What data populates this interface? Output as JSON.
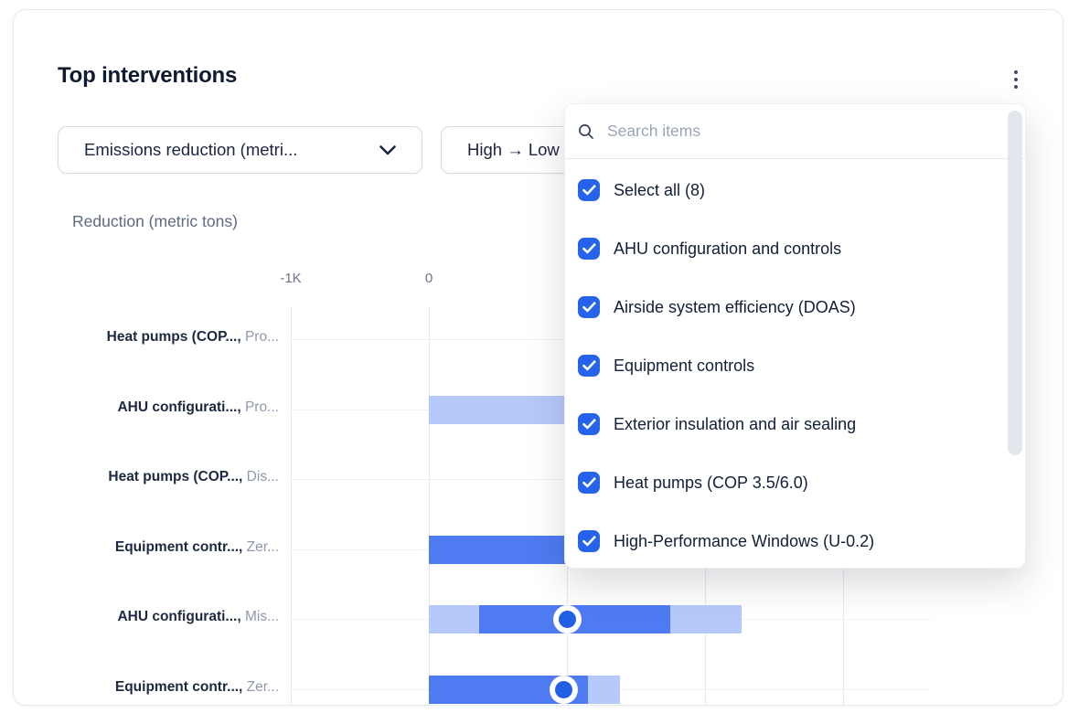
{
  "card": {
    "title": "Top interventions",
    "menu_icon": "kebab-vertical-icon"
  },
  "filters": {
    "metric_select": {
      "value": "Emissions reduction (metri...",
      "icon": "chevron-down-icon"
    },
    "sort_select": {
      "value": "High → Low"
    }
  },
  "dropdown_panel": {
    "search": {
      "placeholder": "Search items",
      "icon": "search-icon"
    },
    "items": [
      {
        "label": "Select all (8)",
        "checked": true
      },
      {
        "label": "AHU configuration and controls",
        "checked": true
      },
      {
        "label": "Airside system efficiency (DOAS)",
        "checked": true
      },
      {
        "label": "Equipment controls",
        "checked": true
      },
      {
        "label": "Exterior insulation and air sealing",
        "checked": true
      },
      {
        "label": "Heat pumps (COP 3.5/6.0)",
        "checked": true
      },
      {
        "label": "High-Performance Windows (U-0.2)",
        "checked": true
      }
    ]
  },
  "chart_data": {
    "type": "bar",
    "orientation": "horizontal",
    "title": "Reduction (metric tons)",
    "xlabel": "Reduction (metric tons)",
    "ylabel": "",
    "grid": true,
    "x_axis": {
      "unit": "metric tons",
      "visible_ticks": [
        {
          "label": "-1K",
          "value": -1000
        },
        {
          "label": "0",
          "value": 0
        }
      ],
      "gridline_values": [
        -1000,
        0,
        1000,
        2000,
        3000
      ]
    },
    "rows": [
      {
        "label_bold": "Heat pumps (COP...,",
        "label_muted": "Pro...",
        "segments": [],
        "marker": null
      },
      {
        "label_bold": "AHU configurati...,",
        "label_muted": "Pro...",
        "segments": [
          {
            "tone": "light",
            "from": 0,
            "to": 1000
          }
        ],
        "marker": null
      },
      {
        "label_bold": "Heat pumps (COP...,",
        "label_muted": "Dis...",
        "segments": [],
        "marker": null
      },
      {
        "label_bold": "Equipment contr...,",
        "label_muted": "Zer...",
        "segments": [
          {
            "tone": "dark",
            "from": 0,
            "to": 1000
          }
        ],
        "marker": null
      },
      {
        "label_bold": "AHU configurati...,",
        "label_muted": "Mis...",
        "segments": [
          {
            "tone": "light",
            "from": 0,
            "to": 365
          },
          {
            "tone": "dark",
            "from": 365,
            "to": 1750
          },
          {
            "tone": "light",
            "from": 1750,
            "to": 2265
          }
        ],
        "marker": 1000
      },
      {
        "label_bold": "Equipment contr...,",
        "label_muted": "Zer...",
        "segments": [
          {
            "tone": "dark",
            "from": 0,
            "to": 1150
          },
          {
            "tone": "light",
            "from": 1150,
            "to": 1385
          }
        ],
        "marker": 975
      }
    ]
  },
  "colors": {
    "accent_blue": "#2563eb",
    "bar_dark": "#4e7bf2",
    "bar_light": "#b6c9fb",
    "marker_fill": "#2160e4",
    "title_text": "#0f1b30"
  }
}
